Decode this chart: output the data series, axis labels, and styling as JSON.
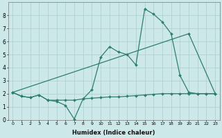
{
  "xlabel": "Humidex (Indice chaleur)",
  "bg_color": "#cce8e8",
  "line_color": "#2e7d6e",
  "grid_color": "#aacece",
  "xlim": [
    -0.5,
    23.5
  ],
  "ylim": [
    0,
    9
  ],
  "xticks": [
    0,
    1,
    2,
    3,
    4,
    5,
    6,
    7,
    8,
    9,
    10,
    11,
    12,
    13,
    14,
    15,
    16,
    17,
    18,
    19,
    20,
    21,
    22,
    23
  ],
  "yticks": [
    0,
    1,
    2,
    3,
    4,
    5,
    6,
    7,
    8
  ],
  "series": [
    {
      "x": [
        0,
        1,
        2,
        3,
        4,
        5,
        6,
        7,
        8,
        9,
        10,
        11,
        12,
        13,
        14,
        15,
        16,
        17,
        18,
        19,
        20,
        21,
        22,
        23
      ],
      "y": [
        2.1,
        1.8,
        1.7,
        1.9,
        1.5,
        1.4,
        1.1,
        0.05,
        1.6,
        2.3,
        4.8,
        5.6,
        5.2,
        5.0,
        4.2,
        8.5,
        8.1,
        7.5,
        6.6,
        3.4,
        2.1,
        2.0,
        2.0,
        2.0
      ]
    },
    {
      "x": [
        0,
        1,
        2,
        3,
        4,
        5,
        6,
        7,
        8,
        9,
        10,
        11,
        12,
        13,
        14,
        15,
        16,
        17,
        18,
        19,
        20,
        21,
        22,
        23
      ],
      "y": [
        2.1,
        1.8,
        1.7,
        1.9,
        1.5,
        1.5,
        1.5,
        1.5,
        1.6,
        1.65,
        1.7,
        1.75,
        1.75,
        1.8,
        1.85,
        1.9,
        1.95,
        2.0,
        2.0,
        2.0,
        2.0,
        2.0,
        2.0,
        2.0
      ]
    },
    {
      "x": [
        0,
        20,
        23
      ],
      "y": [
        2.1,
        6.6,
        2.0
      ]
    }
  ]
}
